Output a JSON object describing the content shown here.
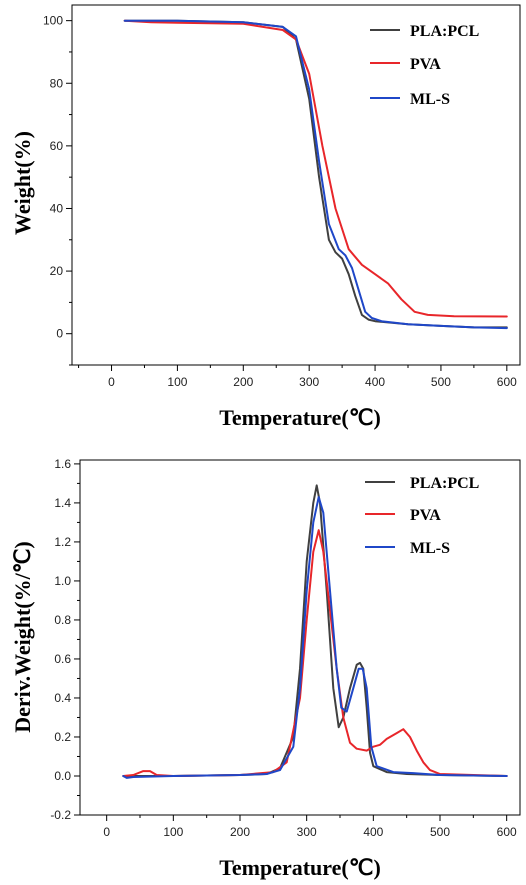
{
  "chart_data": [
    {
      "type": "line",
      "title": "",
      "xlabel": "Temperature(℃)",
      "ylabel": "Weight(%)",
      "xlim": [
        -60,
        620
      ],
      "ylim": [
        -10,
        105
      ],
      "xticks": [
        0,
        100,
        200,
        300,
        400,
        500,
        600
      ],
      "yticks": [
        0,
        20,
        40,
        60,
        80,
        100
      ],
      "grid": false,
      "legend_position": "top-right",
      "series": [
        {
          "name": "PLA:PCL",
          "color": "#404040",
          "points": [
            [
              20,
              100
            ],
            [
              100,
              100
            ],
            [
              200,
              99.5
            ],
            [
              260,
              98
            ],
            [
              280,
              94
            ],
            [
              300,
              75
            ],
            [
              315,
              50
            ],
            [
              330,
              30
            ],
            [
              340,
              26
            ],
            [
              350,
              24
            ],
            [
              360,
              19
            ],
            [
              370,
              12
            ],
            [
              380,
              6
            ],
            [
              390,
              4.5
            ],
            [
              400,
              4
            ],
            [
              450,
              3
            ],
            [
              500,
              2.5
            ],
            [
              550,
              2
            ],
            [
              600,
              2
            ]
          ]
        },
        {
          "name": "PVA",
          "color": "#e8262a",
          "points": [
            [
              20,
              100
            ],
            [
              60,
              99.5
            ],
            [
              100,
              99.3
            ],
            [
              200,
              99
            ],
            [
              260,
              97
            ],
            [
              280,
              94
            ],
            [
              300,
              83
            ],
            [
              320,
              60
            ],
            [
              340,
              40
            ],
            [
              360,
              27
            ],
            [
              380,
              22
            ],
            [
              400,
              19
            ],
            [
              420,
              16
            ],
            [
              440,
              11
            ],
            [
              460,
              7
            ],
            [
              480,
              6
            ],
            [
              520,
              5.6
            ],
            [
              600,
              5.5
            ]
          ]
        },
        {
          "name": "ML-S",
          "color": "#1f47c8",
          "points": [
            [
              20,
              100
            ],
            [
              100,
              100
            ],
            [
              200,
              99.5
            ],
            [
              260,
              98
            ],
            [
              280,
              95
            ],
            [
              300,
              78
            ],
            [
              315,
              55
            ],
            [
              330,
              35
            ],
            [
              345,
              27
            ],
            [
              355,
              25
            ],
            [
              365,
              21
            ],
            [
              375,
              14
            ],
            [
              385,
              7
            ],
            [
              395,
              5
            ],
            [
              410,
              4
            ],
            [
              450,
              3
            ],
            [
              500,
              2.5
            ],
            [
              550,
              2
            ],
            [
              600,
              1.8
            ]
          ]
        }
      ]
    },
    {
      "type": "line",
      "title": "",
      "xlabel": "Temperature(℃)",
      "ylabel": "Deriv.Weight(%/℃)",
      "xlim": [
        -40,
        620
      ],
      "ylim": [
        -0.2,
        1.62
      ],
      "xticks": [
        0,
        100,
        200,
        300,
        400,
        500,
        600
      ],
      "yticks": [
        -0.2,
        0.0,
        0.2,
        0.4,
        0.6,
        0.8,
        1.0,
        1.2,
        1.4,
        1.6
      ],
      "ytick_labels": [
        "-0.2",
        "0.0",
        "0.2",
        "0.4",
        "0.6",
        "0.8",
        "1.0",
        "1.2",
        "1.4",
        "1.6"
      ],
      "grid": false,
      "legend_position": "top-right",
      "series": [
        {
          "name": "PLA:PCL",
          "color": "#404040",
          "points": [
            [
              25,
              0
            ],
            [
              30,
              -0.005
            ],
            [
              40,
              0
            ],
            [
              100,
              0
            ],
            [
              200,
              0.005
            ],
            [
              240,
              0.01
            ],
            [
              260,
              0.04
            ],
            [
              280,
              0.2
            ],
            [
              290,
              0.55
            ],
            [
              300,
              1.1
            ],
            [
              310,
              1.4
            ],
            [
              315,
              1.49
            ],
            [
              320,
              1.4
            ],
            [
              330,
              0.95
            ],
            [
              340,
              0.45
            ],
            [
              348,
              0.25
            ],
            [
              355,
              0.3
            ],
            [
              365,
              0.45
            ],
            [
              375,
              0.57
            ],
            [
              380,
              0.58
            ],
            [
              385,
              0.55
            ],
            [
              390,
              0.35
            ],
            [
              395,
              0.12
            ],
            [
              400,
              0.05
            ],
            [
              420,
              0.02
            ],
            [
              450,
              0.01
            ],
            [
              500,
              0.005
            ],
            [
              600,
              0.0
            ]
          ]
        },
        {
          "name": "PVA",
          "color": "#e8262a",
          "points": [
            [
              25,
              0
            ],
            [
              40,
              0.005
            ],
            [
              55,
              0.025
            ],
            [
              65,
              0.025
            ],
            [
              75,
              0.005
            ],
            [
              100,
              0
            ],
            [
              200,
              0.005
            ],
            [
              250,
              0.02
            ],
            [
              270,
              0.07
            ],
            [
              290,
              0.4
            ],
            [
              300,
              0.8
            ],
            [
              310,
              1.15
            ],
            [
              318,
              1.26
            ],
            [
              325,
              1.15
            ],
            [
              335,
              0.85
            ],
            [
              345,
              0.55
            ],
            [
              355,
              0.3
            ],
            [
              365,
              0.17
            ],
            [
              375,
              0.14
            ],
            [
              390,
              0.13
            ],
            [
              400,
              0.15
            ],
            [
              410,
              0.16
            ],
            [
              420,
              0.19
            ],
            [
              435,
              0.22
            ],
            [
              445,
              0.24
            ],
            [
              455,
              0.2
            ],
            [
              465,
              0.13
            ],
            [
              475,
              0.07
            ],
            [
              485,
              0.03
            ],
            [
              500,
              0.01
            ],
            [
              600,
              0.0
            ]
          ]
        },
        {
          "name": "ML-S",
          "color": "#1f47c8",
          "points": [
            [
              25,
              0
            ],
            [
              30,
              -0.01
            ],
            [
              40,
              -0.005
            ],
            [
              100,
              0
            ],
            [
              200,
              0.005
            ],
            [
              240,
              0.01
            ],
            [
              260,
              0.03
            ],
            [
              280,
              0.15
            ],
            [
              290,
              0.45
            ],
            [
              300,
              0.95
            ],
            [
              310,
              1.3
            ],
            [
              318,
              1.43
            ],
            [
              325,
              1.35
            ],
            [
              335,
              0.95
            ],
            [
              345,
              0.55
            ],
            [
              352,
              0.35
            ],
            [
              360,
              0.33
            ],
            [
              370,
              0.45
            ],
            [
              378,
              0.55
            ],
            [
              384,
              0.55
            ],
            [
              390,
              0.45
            ],
            [
              397,
              0.15
            ],
            [
              405,
              0.05
            ],
            [
              430,
              0.02
            ],
            [
              460,
              0.015
            ],
            [
              500,
              0.005
            ],
            [
              600,
              0.0
            ]
          ]
        }
      ]
    }
  ]
}
